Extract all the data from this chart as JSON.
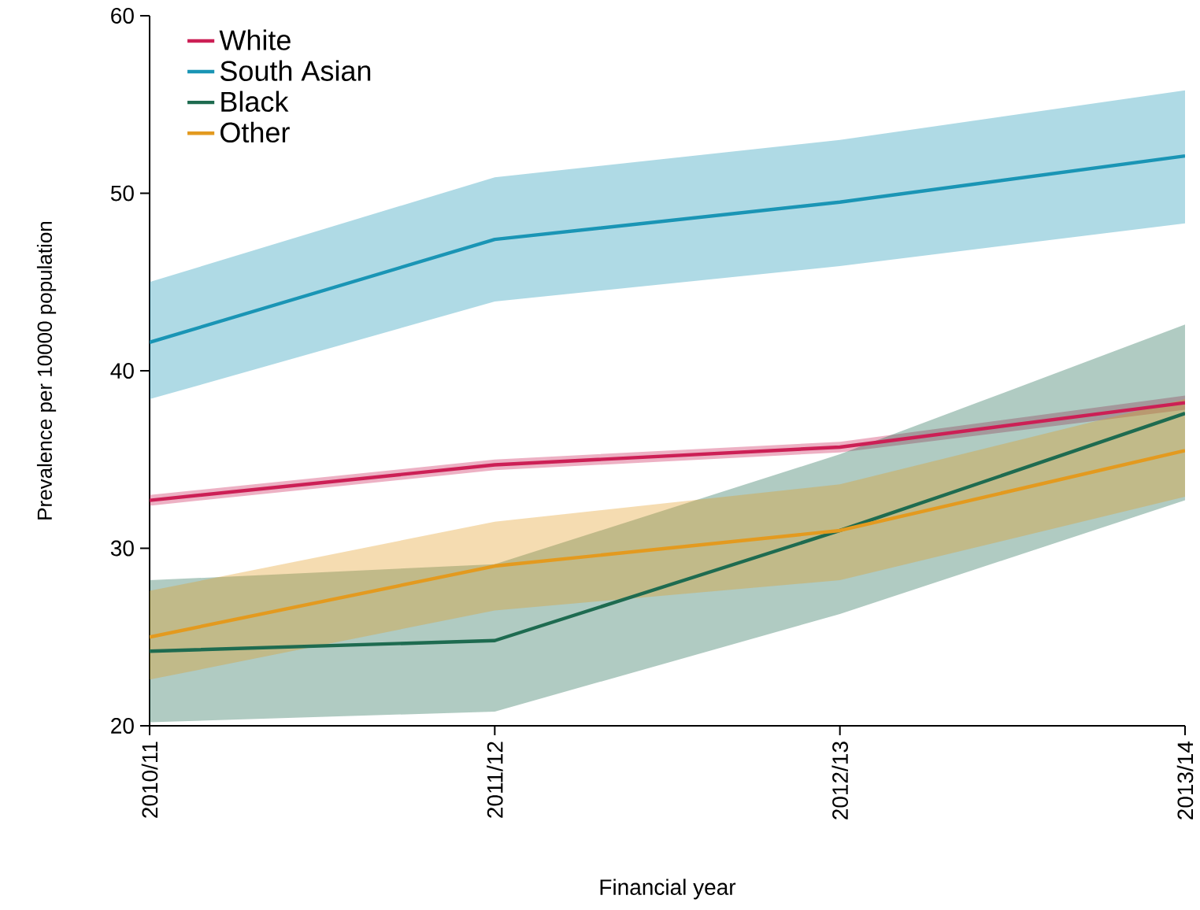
{
  "chart_data": {
    "type": "line",
    "xlabel": "Financial year",
    "ylabel": "Prevalence per 10000 population",
    "categories": [
      "2010/11",
      "2011/12",
      "2012/13",
      "2013/14"
    ],
    "ylim": [
      20,
      60
    ],
    "yticks": [
      20,
      30,
      40,
      50,
      60
    ],
    "grid": false,
    "legend": "top left",
    "series": [
      {
        "name": "White",
        "color": "#cc1f55",
        "values": [
          32.7,
          34.7,
          35.7,
          38.2
        ],
        "lower": [
          32.4,
          34.4,
          35.4,
          37.8
        ],
        "upper": [
          33.0,
          35.0,
          36.0,
          38.6
        ]
      },
      {
        "name": "South Asian",
        "color": "#1a95b5",
        "values": [
          41.6,
          47.4,
          49.5,
          52.1
        ],
        "lower": [
          38.4,
          43.9,
          45.9,
          48.3
        ],
        "upper": [
          45.0,
          50.9,
          53.0,
          55.8
        ]
      },
      {
        "name": "Black",
        "color": "#1e6b50",
        "values": [
          24.2,
          24.8,
          31.0,
          37.6
        ],
        "lower": [
          20.2,
          20.8,
          26.3,
          32.7
        ],
        "upper": [
          28.2,
          29.1,
          35.3,
          42.6
        ]
      },
      {
        "name": "Other",
        "color": "#e39a1f",
        "values": [
          25.0,
          29.0,
          31.0,
          35.5
        ],
        "lower": [
          22.6,
          26.5,
          28.2,
          32.9
        ],
        "upper": [
          27.6,
          31.5,
          33.6,
          38.4
        ]
      }
    ]
  }
}
